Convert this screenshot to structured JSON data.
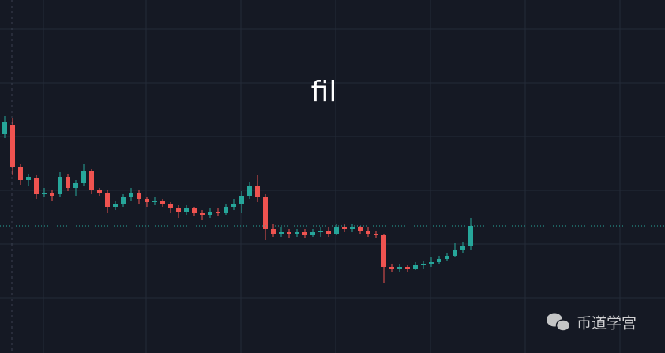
{
  "chart_data": {
    "type": "candlestick",
    "title": "fil",
    "watermark": "币道学宫",
    "ylim": [
      0,
      447
    ],
    "grid": true,
    "last_price_line": true,
    "up_color": "#26a69a",
    "down_color": "#ef5350",
    "open": [
      277,
      289,
      235,
      219,
      221,
      201,
      203,
      201,
      223,
      209,
      215,
      231,
      207,
      203,
      185,
      189,
      197,
      203,
      195,
      191,
      193,
      189,
      183,
      179,
      183,
      177,
      175,
      179,
      177,
      185,
      189,
      199,
      211,
      197,
      157,
      151,
      153,
      151,
      153,
      149,
      153,
      155,
      151,
      159,
      157,
      159,
      155,
      151,
      149,
      109,
      107,
      109,
      107,
      111,
      113,
      115,
      119,
      123,
      131,
      135
    ],
    "high": [
      300,
      297,
      239,
      227,
      225,
      209,
      207,
      229,
      227,
      219,
      239,
      233,
      209,
      207,
      193,
      201,
      209,
      207,
      197,
      197,
      195,
      191,
      187,
      187,
      185,
      181,
      183,
      183,
      189,
      195,
      205,
      217,
      225,
      201,
      163,
      159,
      157,
      157,
      157,
      157,
      159,
      159,
      163,
      163,
      163,
      161,
      159,
      155,
      151,
      113,
      113,
      111,
      115,
      117,
      121,
      123,
      127,
      139,
      141,
      171
    ],
    "low": [
      272,
      225,
      213,
      211,
      195,
      197,
      193,
      197,
      205,
      199,
      211,
      201,
      199,
      177,
      181,
      185,
      193,
      189,
      185,
      187,
      185,
      177,
      171,
      175,
      173,
      169,
      171,
      173,
      175,
      181,
      177,
      195,
      191,
      143,
      147,
      147,
      145,
      147,
      145,
      147,
      147,
      147,
      149,
      153,
      153,
      151,
      147,
      145,
      89,
      103,
      103,
      103,
      105,
      107,
      109,
      113,
      117,
      121,
      127,
      131
    ],
    "close": [
      292,
      235,
      219,
      223,
      201,
      203,
      199,
      223,
      209,
      215,
      231,
      207,
      203,
      185,
      189,
      197,
      203,
      195,
      191,
      193,
      189,
      183,
      179,
      183,
      177,
      175,
      179,
      177,
      185,
      189,
      199,
      211,
      197,
      157,
      151,
      153,
      151,
      153,
      149,
      153,
      155,
      151,
      159,
      157,
      159,
      155,
      151,
      149,
      109,
      107,
      109,
      107,
      111,
      113,
      115,
      119,
      123,
      131,
      135,
      161
    ]
  }
}
